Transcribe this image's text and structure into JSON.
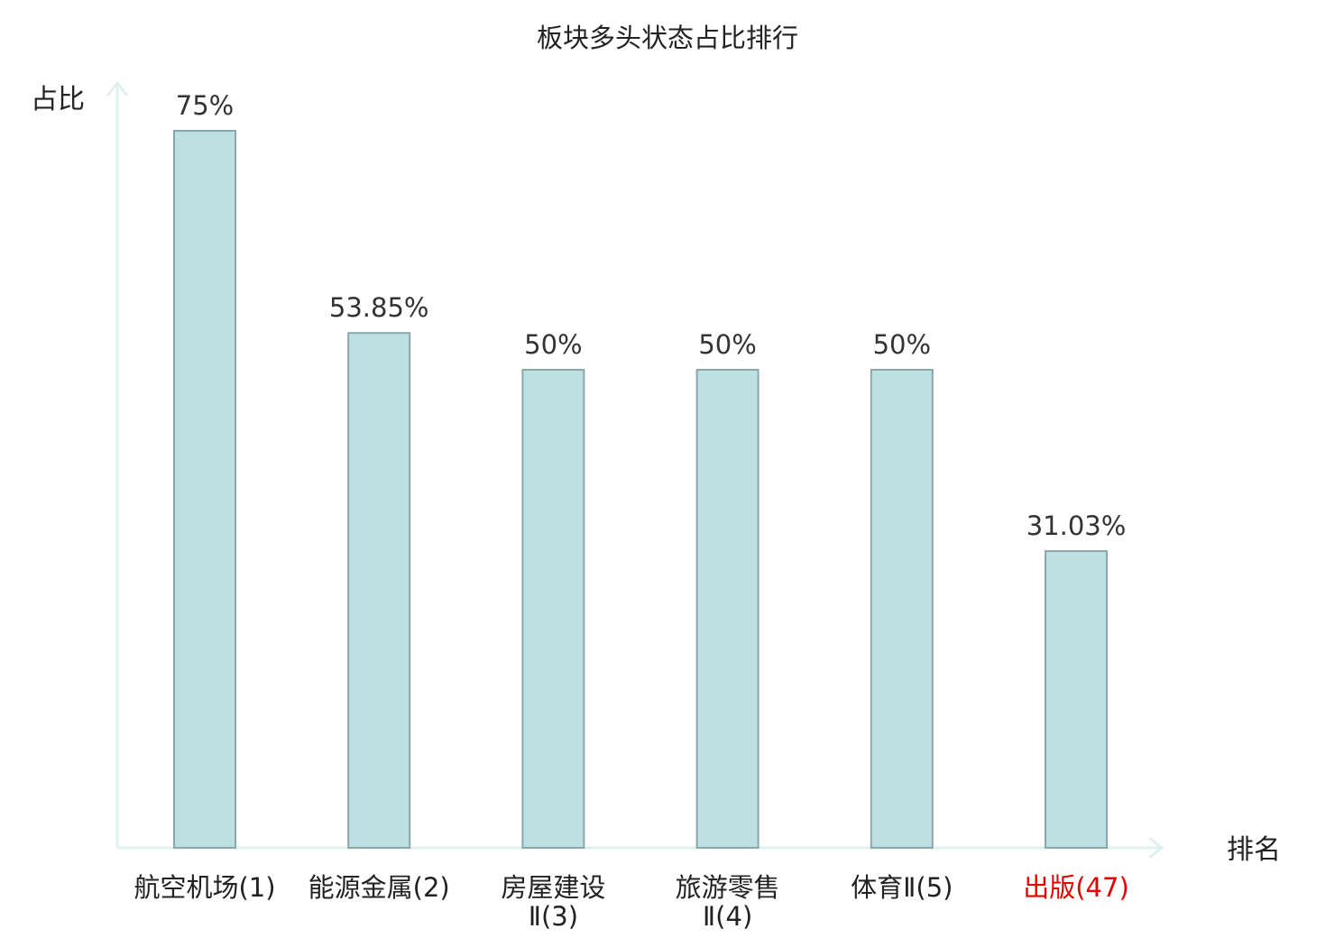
{
  "chart_data": {
    "type": "bar",
    "title": "板块多头状态占比排行",
    "ylabel": "占比",
    "xlabel": "排名",
    "categories": [
      [
        "航空机场",
        "(1)"
      ],
      [
        "能源金属",
        "(2)"
      ],
      [
        "房屋建设",
        "Ⅱ(3)"
      ],
      [
        "旅游零售",
        "Ⅱ(4)"
      ],
      [
        "体育",
        "Ⅱ(5)"
      ],
      [
        "出版",
        "(47)"
      ]
    ],
    "values": [
      75,
      53.85,
      50,
      50,
      50,
      31.03
    ],
    "value_labels": [
      "75%",
      "53.85%",
      "50%",
      "50%",
      "50%",
      "31.03%"
    ],
    "highlight_index": 5,
    "ylim": [
      0,
      80
    ],
    "grid": false,
    "colors": {
      "bar_fill": "#bde0e3",
      "bar_stroke": "#8aa8aa",
      "axis": "#dff1ef",
      "highlight_text": "#e60000",
      "text": "#222222"
    }
  }
}
